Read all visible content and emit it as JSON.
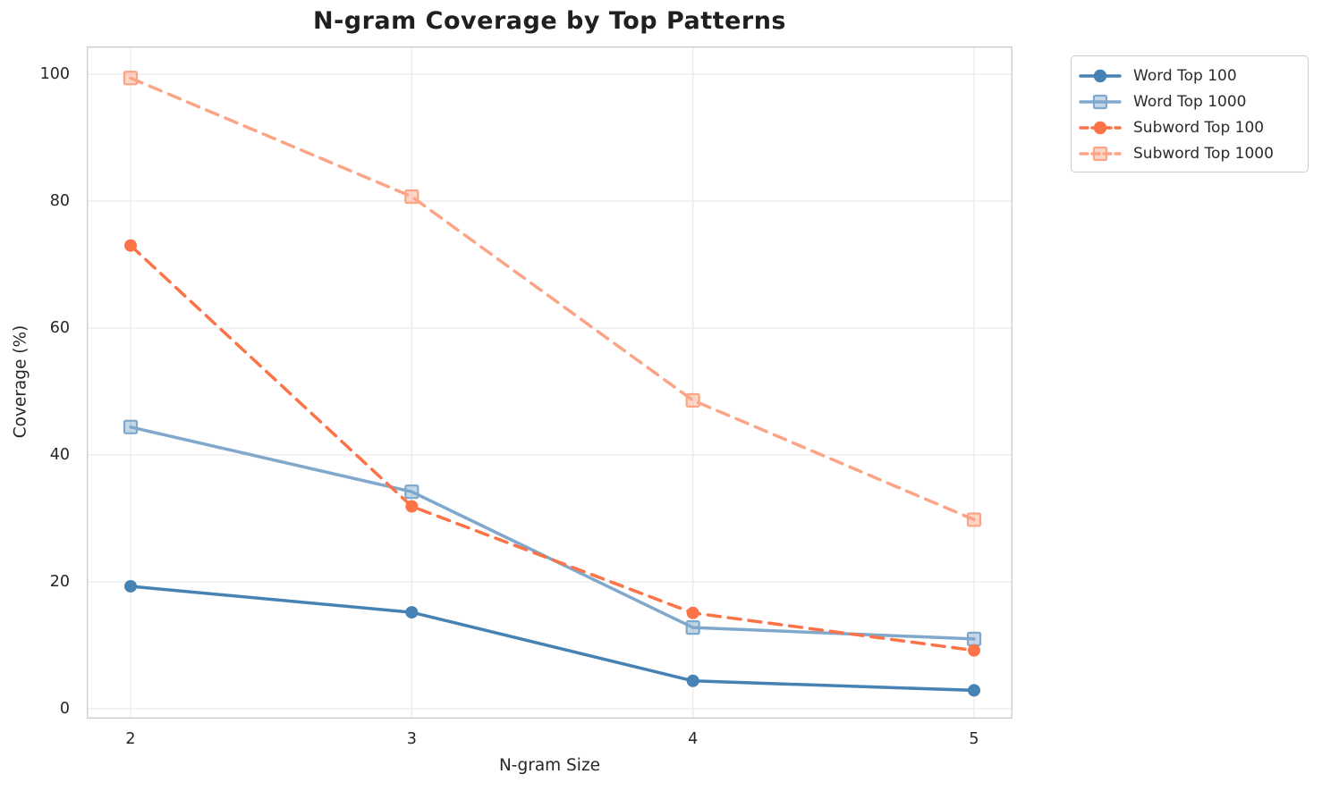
{
  "chart_data": {
    "type": "line",
    "title": "N-gram Coverage by Top Patterns",
    "xlabel": "N-gram Size",
    "ylabel": "Coverage (%)",
    "x": [
      2,
      3,
      4,
      5
    ],
    "xticks": [
      "2",
      "3",
      "4",
      "5"
    ],
    "yticks": [
      0,
      20,
      40,
      60,
      80,
      100
    ],
    "xlim": [
      1.85,
      5.15
    ],
    "ylim": [
      -2,
      104
    ],
    "grid": true,
    "legend_position": "outside-top-right",
    "colors": {
      "grid": "#ebebeb",
      "spine": "#cfcfcf",
      "text": "#262626",
      "title": "#1f1f1f"
    },
    "series": [
      {
        "name": "Word Top 100",
        "values": [
          19.3,
          15.2,
          4.4,
          2.9
        ],
        "color": "#4682B4",
        "marker": "circle",
        "line_style": "solid"
      },
      {
        "name": "Word Top 1000",
        "values": [
          44.4,
          34.2,
          12.8,
          11.0
        ],
        "color": "#7FA8CC",
        "marker": "square",
        "line_style": "solid"
      },
      {
        "name": "Subword Top 100",
        "values": [
          73.0,
          31.9,
          15.1,
          9.2
        ],
        "color": "#FB7346",
        "marker": "circle",
        "line_style": "dashed"
      },
      {
        "name": "Subword Top 1000",
        "values": [
          99.4,
          80.7,
          48.6,
          29.8
        ],
        "color": "#FCA486",
        "marker": "square",
        "line_style": "dashed"
      }
    ]
  }
}
